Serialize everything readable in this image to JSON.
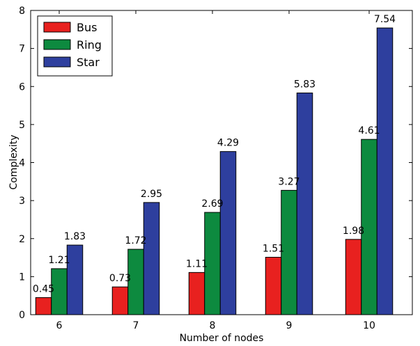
{
  "chart_data": {
    "type": "bar",
    "xlabel": "Number of nodes",
    "ylabel": "Complexity",
    "ylim": [
      0,
      8
    ],
    "yticks": [
      "0",
      "1",
      "2",
      "3",
      "4",
      "5",
      "6",
      "7",
      "8"
    ],
    "categories": [
      "6",
      "7",
      "8",
      "9",
      "10"
    ],
    "legend_position": "top-left",
    "grid": false,
    "series": [
      {
        "name": "Bus",
        "color": "#e8211f",
        "values": [
          0.45,
          0.73,
          1.11,
          1.51,
          1.98
        ],
        "labels": [
          "0.45",
          "0.73",
          "1.11",
          "1.51",
          "1.98"
        ]
      },
      {
        "name": "Ring",
        "color": "#0d8a3f",
        "values": [
          1.21,
          1.72,
          2.69,
          3.27,
          4.61
        ],
        "labels": [
          "1.21",
          "1.72",
          "2.69",
          "3.27",
          "4.61"
        ]
      },
      {
        "name": "Star",
        "color": "#2e3f9e",
        "values": [
          1.83,
          2.95,
          4.29,
          5.83,
          7.54
        ],
        "labels": [
          "1.83",
          "2.95",
          "4.29",
          "5.83",
          "7.54"
        ]
      }
    ]
  }
}
